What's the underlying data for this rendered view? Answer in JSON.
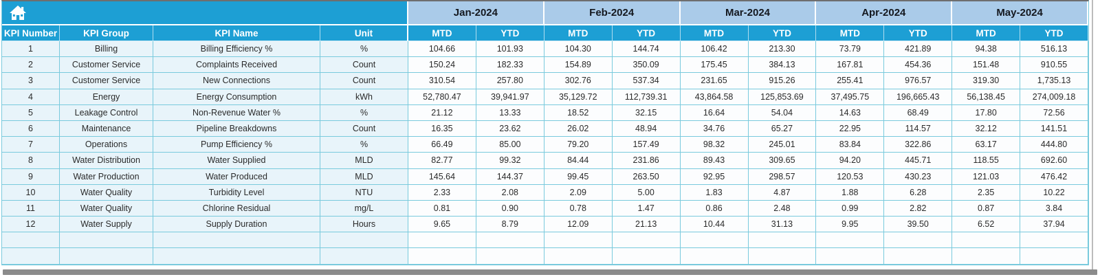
{
  "table": {
    "corner_icon": "home",
    "left_headers": [
      "KPI Number",
      "KPI Group",
      "KPI Name",
      "Unit"
    ],
    "month_headers": [
      "Jan-2024",
      "Feb-2024",
      "Mar-2024",
      "Apr-2024",
      "May-2024"
    ],
    "period_headers": [
      "MTD",
      "YTD"
    ],
    "rows": [
      {
        "kpi_number": "1",
        "kpi_group": "Billing",
        "kpi_name": "Billing Efficiency %",
        "unit": "%",
        "values": [
          "104.66",
          "101.93",
          "104.30",
          "144.74",
          "106.42",
          "213.30",
          "73.79",
          "421.89",
          "94.38",
          "516.13"
        ]
      },
      {
        "kpi_number": "2",
        "kpi_group": "Customer Service",
        "kpi_name": "Complaints Received",
        "unit": "Count",
        "values": [
          "150.24",
          "182.33",
          "154.89",
          "350.09",
          "175.45",
          "384.13",
          "167.81",
          "454.36",
          "151.48",
          "910.55"
        ]
      },
      {
        "kpi_number": "3",
        "kpi_group": "Customer Service",
        "kpi_name": "New Connections",
        "unit": "Count",
        "values": [
          "310.54",
          "257.80",
          "302.76",
          "537.34",
          "231.65",
          "915.26",
          "255.41",
          "976.57",
          "319.30",
          "1,735.13"
        ]
      },
      {
        "kpi_number": "4",
        "kpi_group": "Energy",
        "kpi_name": "Energy Consumption",
        "unit": "kWh",
        "values": [
          "52,780.47",
          "39,941.97",
          "35,129.72",
          "112,739.31",
          "43,864.58",
          "125,853.69",
          "37,495.75",
          "196,665.43",
          "56,138.45",
          "274,009.18"
        ]
      },
      {
        "kpi_number": "5",
        "kpi_group": "Leakage Control",
        "kpi_name": "Non-Revenue Water %",
        "unit": "%",
        "values": [
          "21.12",
          "13.33",
          "18.52",
          "32.15",
          "16.64",
          "54.04",
          "14.63",
          "68.49",
          "17.80",
          "72.56"
        ]
      },
      {
        "kpi_number": "6",
        "kpi_group": "Maintenance",
        "kpi_name": "Pipeline Breakdowns",
        "unit": "Count",
        "values": [
          "16.35",
          "23.62",
          "26.02",
          "48.94",
          "34.76",
          "65.27",
          "22.95",
          "114.57",
          "32.12",
          "141.51"
        ]
      },
      {
        "kpi_number": "7",
        "kpi_group": "Operations",
        "kpi_name": "Pump Efficiency %",
        "unit": "%",
        "values": [
          "66.49",
          "85.00",
          "79.20",
          "157.49",
          "98.32",
          "245.01",
          "83.84",
          "322.86",
          "63.17",
          "444.80"
        ]
      },
      {
        "kpi_number": "8",
        "kpi_group": "Water Distribution",
        "kpi_name": "Water Supplied",
        "unit": "MLD",
        "values": [
          "82.77",
          "99.32",
          "84.44",
          "231.86",
          "89.43",
          "309.65",
          "94.20",
          "445.71",
          "118.55",
          "692.60"
        ]
      },
      {
        "kpi_number": "9",
        "kpi_group": "Water Production",
        "kpi_name": "Water Produced",
        "unit": "MLD",
        "values": [
          "145.64",
          "144.37",
          "99.45",
          "263.50",
          "92.95",
          "298.57",
          "120.53",
          "430.23",
          "121.03",
          "476.42"
        ]
      },
      {
        "kpi_number": "10",
        "kpi_group": "Water Quality",
        "kpi_name": "Turbidity Level",
        "unit": "NTU",
        "values": [
          "2.33",
          "2.08",
          "2.09",
          "5.00",
          "1.83",
          "4.87",
          "1.88",
          "6.28",
          "2.35",
          "10.22"
        ]
      },
      {
        "kpi_number": "11",
        "kpi_group": "Water Quality",
        "kpi_name": "Chlorine Residual",
        "unit": "mg/L",
        "values": [
          "0.81",
          "0.90",
          "0.78",
          "1.47",
          "0.86",
          "2.48",
          "0.99",
          "2.82",
          "0.87",
          "3.84"
        ]
      },
      {
        "kpi_number": "12",
        "kpi_group": "Water Supply",
        "kpi_name": "Supply Duration",
        "unit": "Hours",
        "values": [
          "9.65",
          "8.79",
          "12.09",
          "21.13",
          "10.44",
          "31.13",
          "9.95",
          "39.50",
          "6.52",
          "37.94"
        ]
      }
    ],
    "empty_row_count": 2
  },
  "colors": {
    "header_blue": "#1d9fd4",
    "month_blue": "#aacbe9",
    "left_cell_blue": "#e8f4fa",
    "value_cell": "#fcfdfe",
    "grid_border": "#79cadd",
    "month_text": "#14181f",
    "data_text": "#2a2a2a",
    "top_border_gray": "#6e6e6e",
    "scrollbar_gray": "#8b8b8b"
  }
}
